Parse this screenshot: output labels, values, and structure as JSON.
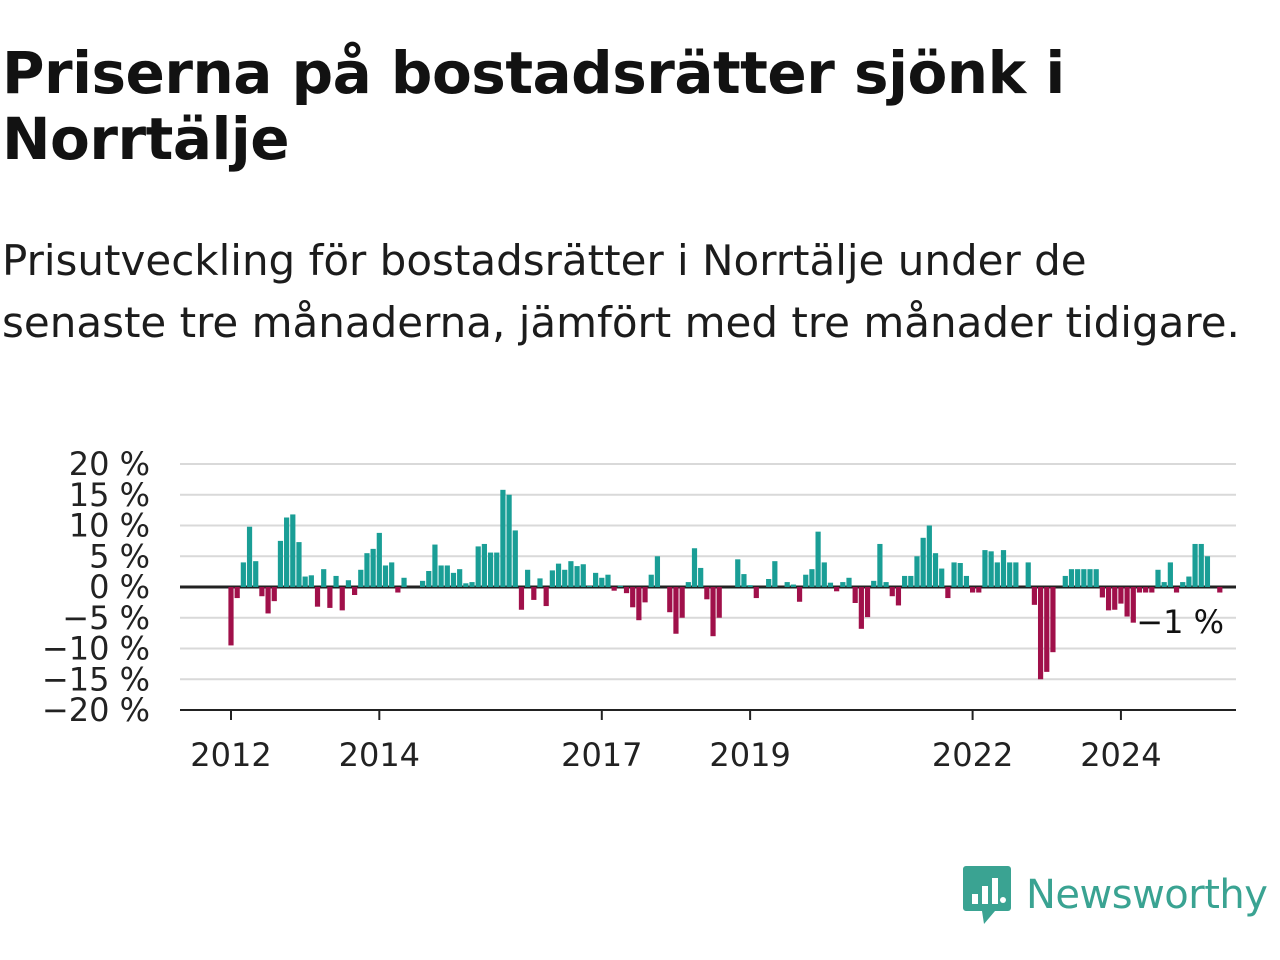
{
  "header": {
    "title": "Priserna på bostadsrätter sjönk i Norrtälje",
    "subtitle": "Prisutveckling för bostadsrätter i Norrtälje under de senaste tre månaderna, jämfört med tre månader tidigare."
  },
  "brand": {
    "name": "Newsworthy",
    "icon": "newsworthy-logo-icon",
    "color": "#3aa392"
  },
  "colors": {
    "positive": "#1a9e96",
    "negative": "#a0104a",
    "grid": "#d9d9d9",
    "axis": "#222222"
  },
  "chart_data": {
    "type": "bar",
    "title": "Priserna på bostadsrätter sjönk i Norrtälje",
    "subtitle": "Prisutveckling för bostadsrätter i Norrtälje under de senaste tre månaderna, jämfört med tre månader tidigare.",
    "x_start": "2012-01",
    "frequency": "monthly",
    "y_ticks": [
      20,
      15,
      10,
      5,
      0,
      -5,
      -10,
      -15,
      -20
    ],
    "y_tick_labels": [
      "20 %",
      "15 %",
      "10 %",
      "5 %",
      "0 %",
      "−5 %",
      "−10 %",
      "−15 %",
      "−20 %"
    ],
    "ylim": [
      -20,
      20
    ],
    "x_ticks": [
      {
        "label": "2012",
        "date": "2012-01"
      },
      {
        "label": "2014",
        "date": "2014-01"
      },
      {
        "label": "2017",
        "date": "2017-01"
      },
      {
        "label": "2019",
        "date": "2019-01"
      },
      {
        "label": "2022",
        "date": "2022-01"
      },
      {
        "label": "2024",
        "date": "2024-01"
      }
    ],
    "grid": true,
    "last_value_label": "−1 %",
    "values": [
      -9.5,
      -1.8,
      4.0,
      9.8,
      4.2,
      -1.5,
      -4.3,
      -2.3,
      7.5,
      11.3,
      11.8,
      7.3,
      1.7,
      1.9,
      -3.2,
      2.9,
      -3.4,
      1.8,
      -3.8,
      1.1,
      -1.3,
      2.8,
      5.5,
      6.2,
      8.8,
      3.5,
      4.0,
      -0.9,
      1.5,
      0.0,
      0.0,
      1.0,
      2.6,
      6.9,
      3.5,
      3.5,
      2.3,
      2.9,
      0.6,
      0.8,
      6.6,
      7.0,
      5.6,
      5.6,
      15.8,
      15.0,
      9.2,
      -3.7,
      2.8,
      -2.1,
      1.4,
      -3.1,
      2.7,
      3.8,
      2.8,
      4.2,
      3.4,
      3.7,
      0.2,
      2.3,
      1.5,
      2.0,
      -0.6,
      0.2,
      -1.0,
      -3.3,
      -5.4,
      -2.5,
      2.0,
      5.0,
      0.0,
      -4.1,
      -7.6,
      -5.0,
      0.8,
      6.3,
      3.1,
      -2.0,
      -8.0,
      -5.0,
      0.0,
      0.0,
      4.5,
      2.1,
      0.3,
      -1.8,
      0.0,
      1.3,
      4.2,
      0.0,
      0.8,
      0.4,
      -2.4,
      2.0,
      2.9,
      9.0,
      4.0,
      0.7,
      -0.7,
      0.8,
      1.5,
      -2.6,
      -6.8,
      -4.9,
      1.0,
      7.0,
      0.8,
      -1.5,
      -3.0,
      1.8,
      1.8,
      5.0,
      8.0,
      10.0,
      5.5,
      3.0,
      -1.8,
      4.0,
      3.9,
      1.8,
      -0.9,
      -0.9,
      6.0,
      5.8,
      4.0,
      6.0,
      4.0,
      4.0,
      0.0,
      4.0,
      -2.9,
      -15.0,
      -13.8,
      -10.6,
      0.0,
      1.8,
      2.9,
      2.9,
      2.9,
      2.9,
      2.9,
      -1.7,
      -3.8,
      -3.7,
      -2.7,
      -4.8,
      -5.8,
      -0.9,
      -0.9,
      -0.9,
      2.8,
      0.8,
      4.0,
      -0.9,
      0.8,
      1.7,
      7.0,
      7.0,
      5.0,
      0.0,
      -0.9
    ]
  }
}
